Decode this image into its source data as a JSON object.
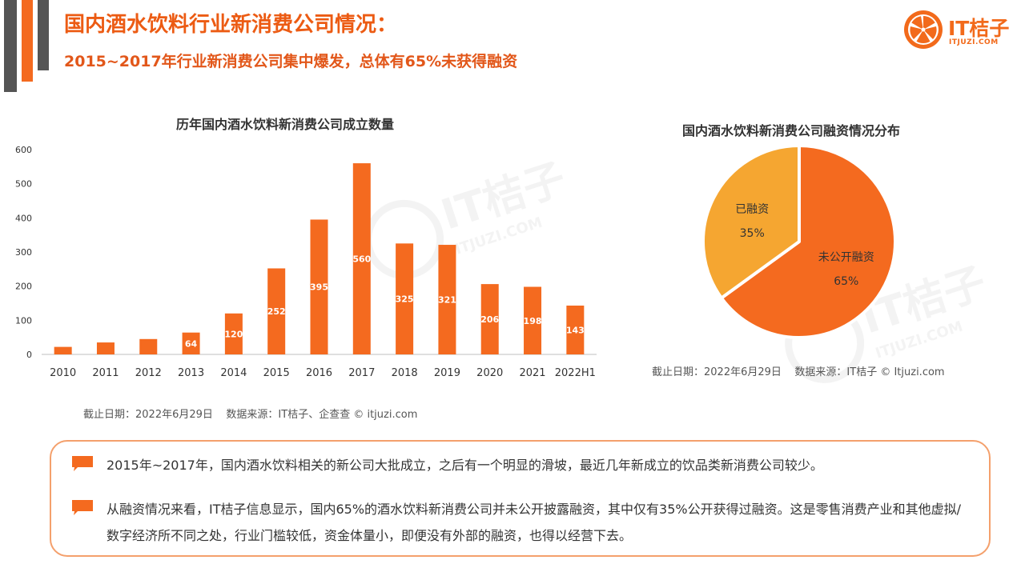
{
  "header": {
    "title": "国内酒水饮料行业新消费公司情况：",
    "subtitle": "2015~2017年行业新消费公司集中爆发，总体有65%未获得融资"
  },
  "logo": {
    "brand": "IT桔子",
    "site": "ITJUZI.COM"
  },
  "colors": {
    "accent": "#f46a1f",
    "pie_major": "#f46a1f",
    "pie_minor": "#f5a631",
    "header_bar": "#555555"
  },
  "chart_data": [
    {
      "type": "bar",
      "title": "历年国内酒水饮料新消费公司成立数量",
      "categories": [
        "2010",
        "2011",
        "2012",
        "2013",
        "2014",
        "2015",
        "2016",
        "2017",
        "2018",
        "2019",
        "2020",
        "2021",
        "2022H1"
      ],
      "values": [
        22,
        35,
        45,
        64,
        120,
        252,
        395,
        560,
        325,
        321,
        206,
        198,
        143
      ],
      "data_labels": [
        "",
        "",
        "",
        "64",
        "120",
        "252",
        "395",
        "560",
        "325",
        "321",
        "206",
        "198",
        "143"
      ],
      "ylim": [
        0,
        600
      ],
      "yticks": [
        "0",
        "100",
        "200",
        "300",
        "400",
        "500",
        "600"
      ],
      "grid": false,
      "color": "#f46a1f"
    },
    {
      "type": "pie",
      "title": "国内酒水饮料新消费公司融资情况分布",
      "slices": [
        {
          "label": "未公开融资",
          "value": 65,
          "value_label": "65%",
          "color": "#f46a1f"
        },
        {
          "label": "已融资",
          "value": 35,
          "value_label": "35%",
          "color": "#f5a631"
        }
      ]
    }
  ],
  "notes": {
    "bar_source": "截止日期：2022年6月29日    数据来源：IT桔子、企查查 © itjuzi.com",
    "pie_source": "截止日期：2022年6月29日    数据来源：IT桔子 © Itjuzi.com"
  },
  "summary": {
    "bullets": [
      "2015年~2017年，国内酒水饮料相关的新公司大批成立，之后有一个明显的滑坡，最近几年新成立的饮品类新消费公司较少。",
      "从融资情况来看，IT桔子信息显示，国内65%的酒水饮料新消费公司并未公开披露融资，其中仅有35%公开获得过融资。这是零售消费产业和其他虚拟/数字经济所不同之处，行业门槛较低，资金体量小，即便没有外部的融资，也得以经营下去。"
    ]
  },
  "icons": {
    "bullet": "speech-bubble-icon",
    "logo": "orange-slice-icon"
  }
}
